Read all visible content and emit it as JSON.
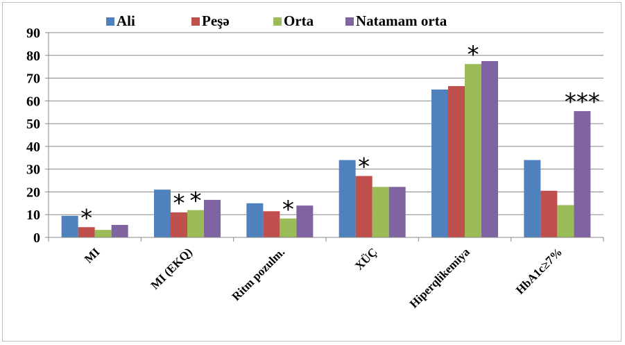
{
  "chart_data": {
    "type": "bar",
    "categories": [
      "MI",
      "MI (EKQ)",
      "Ritm pozulm.",
      "XÜÇ",
      "Hiperqlikemiya",
      "HbA1c≥7%"
    ],
    "series": [
      {
        "name": "Ali",
        "values": [
          9.5,
          21,
          15,
          34,
          65,
          34
        ],
        "color": "#4f81bd"
      },
      {
        "name": "Peşə",
        "values": [
          4.5,
          11,
          11.5,
          27,
          66.5,
          20.5
        ],
        "color": "#c0504d"
      },
      {
        "name": "Orta",
        "values": [
          3.3,
          12,
          8.3,
          22.2,
          76.2,
          14.2
        ],
        "color": "#9bbb59"
      },
      {
        "name": "Natamam orta",
        "values": [
          5.5,
          16.5,
          14,
          22.2,
          77.5,
          55.5
        ],
        "color": "#8064a2"
      }
    ],
    "annotations": [
      {
        "category": 0,
        "series": 1,
        "text": "*"
      },
      {
        "category": 1,
        "series": 1,
        "text": "*"
      },
      {
        "category": 1,
        "series": 2,
        "text": "*"
      },
      {
        "category": 2,
        "series": 2,
        "text": "*"
      },
      {
        "category": 3,
        "series": 1,
        "text": "*"
      },
      {
        "category": 4,
        "series": 2,
        "text": "*"
      },
      {
        "category": 5,
        "series": 3,
        "text": "***"
      }
    ],
    "yticks": [
      "0",
      "10",
      "20",
      "30",
      "40",
      "50",
      "60",
      "70",
      "80",
      "90"
    ],
    "ylim": [
      0,
      90
    ],
    "legend_position": "top",
    "grid": "horizontal"
  }
}
